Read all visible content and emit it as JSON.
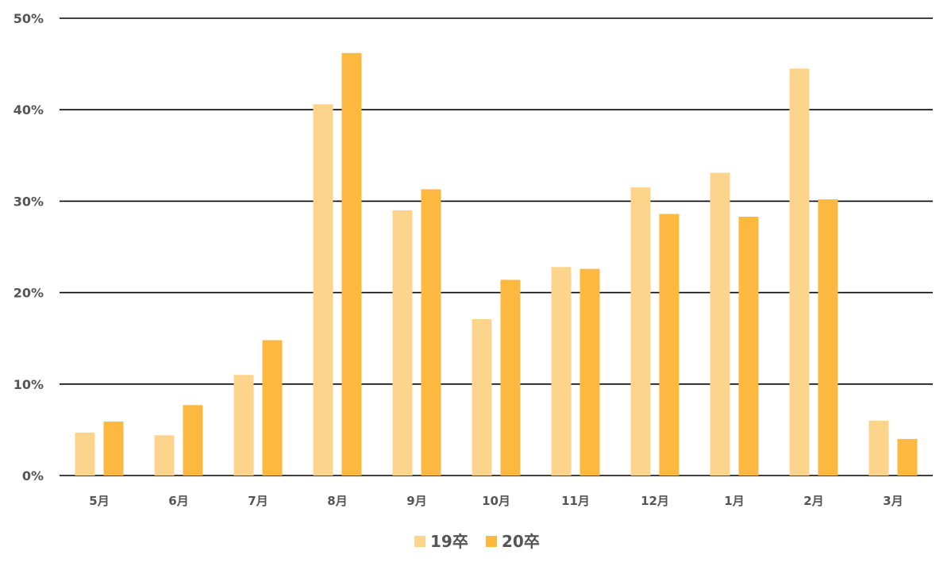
{
  "chart_data": {
    "type": "bar",
    "categories": [
      "5月",
      "6月",
      "7月",
      "8月",
      "9月",
      "10月",
      "11月",
      "12月",
      "1月",
      "2月",
      "3月"
    ],
    "series": [
      {
        "name": "19卒",
        "color": "#FDD48B",
        "values": [
          4.7,
          4.4,
          11.0,
          40.6,
          29.0,
          17.1,
          22.8,
          31.5,
          33.1,
          44.5,
          6.0
        ]
      },
      {
        "name": "20卒",
        "color": "#FDB840",
        "values": [
          5.9,
          7.7,
          14.8,
          46.2,
          31.3,
          21.4,
          22.6,
          28.6,
          28.3,
          30.2,
          4.0
        ]
      }
    ],
    "yticks": [
      0,
      10,
      20,
      30,
      40,
      50
    ],
    "ytick_labels": [
      "0%",
      "10%",
      "20%",
      "30%",
      "40%",
      "50%"
    ],
    "ylim": [
      0,
      50
    ],
    "grid": true,
    "legend": "bottom-center"
  }
}
